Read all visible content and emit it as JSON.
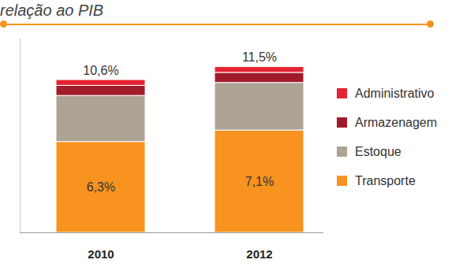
{
  "chart_data": {
    "type": "bar",
    "title": "relação ao PIB",
    "categories": [
      "2010",
      "2012"
    ],
    "stacked": true,
    "series": [
      {
        "name": "Transporte",
        "color": "#f7931e",
        "values": [
          6.3,
          7.1
        ],
        "data_labels": true,
        "value_labels": [
          "6,3%",
          "7,1%"
        ]
      },
      {
        "name": "Estoque",
        "color": "#aea394",
        "values": [
          3.2,
          3.3
        ]
      },
      {
        "name": "Armazenagem",
        "color": "#a11c2b",
        "values": [
          0.7,
          0.7
        ]
      },
      {
        "name": "Administrativo",
        "color": "#e42233",
        "values": [
          0.4,
          0.4
        ]
      }
    ],
    "totals": [
      10.6,
      11.5
    ],
    "total_labels": [
      "10,6%",
      "11,5%"
    ],
    "ylim": [
      0,
      13.5
    ],
    "yticks": [],
    "tick_labels": "x",
    "legend": "right"
  }
}
